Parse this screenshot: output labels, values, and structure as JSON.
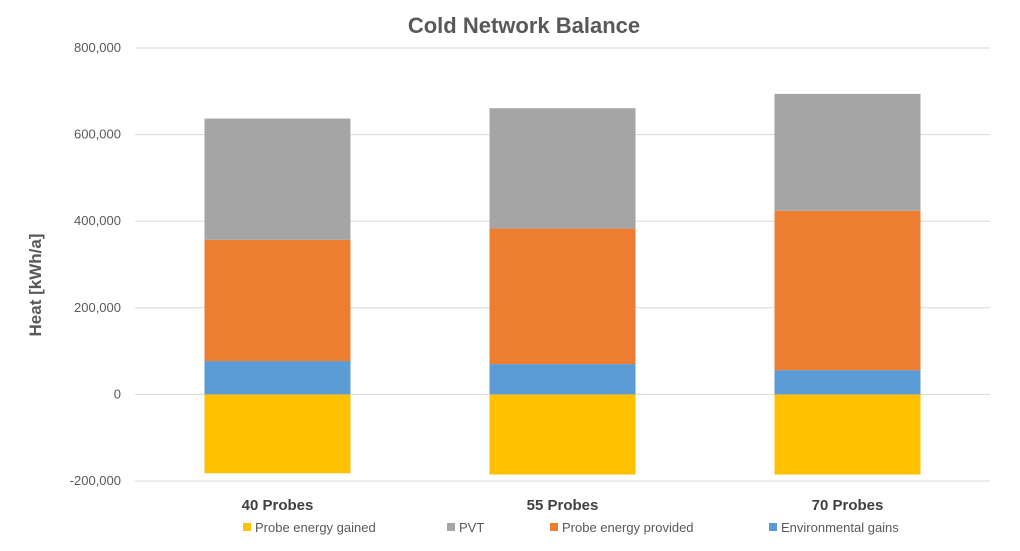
{
  "chart_data": {
    "type": "bar",
    "stacked": true,
    "title": "Cold Network Balance",
    "xlabel": "",
    "ylabel": "Heat [kWh/a]",
    "ylim": [
      -200000,
      800000
    ],
    "yticks": [
      -200000,
      0,
      200000,
      400000,
      600000,
      800000
    ],
    "ytick_labels": [
      "-200,000",
      "0",
      "200,000",
      "400,000",
      "600,000",
      "800,000"
    ],
    "grid": true,
    "legend_position": "bottom",
    "categories": [
      "40 Probes",
      "55 Probes",
      "70 Probes"
    ],
    "series": [
      {
        "name": "Probe energy gained",
        "color": "#FFC000",
        "values": [
          -182000,
          -185000,
          -185000
        ]
      },
      {
        "name": "PVT",
        "color": "#A5A5A5",
        "values": [
          280000,
          278000,
          270000
        ]
      },
      {
        "name": "Probe energy provided",
        "color": "#ED7D31",
        "values": [
          280000,
          313000,
          368000
        ]
      },
      {
        "name": "Environmental gains",
        "color": "#5B9BD5",
        "values": [
          77000,
          70000,
          56000
        ]
      }
    ],
    "stack_order": [
      "Environmental gains",
      "Probe energy provided",
      "PVT"
    ]
  }
}
